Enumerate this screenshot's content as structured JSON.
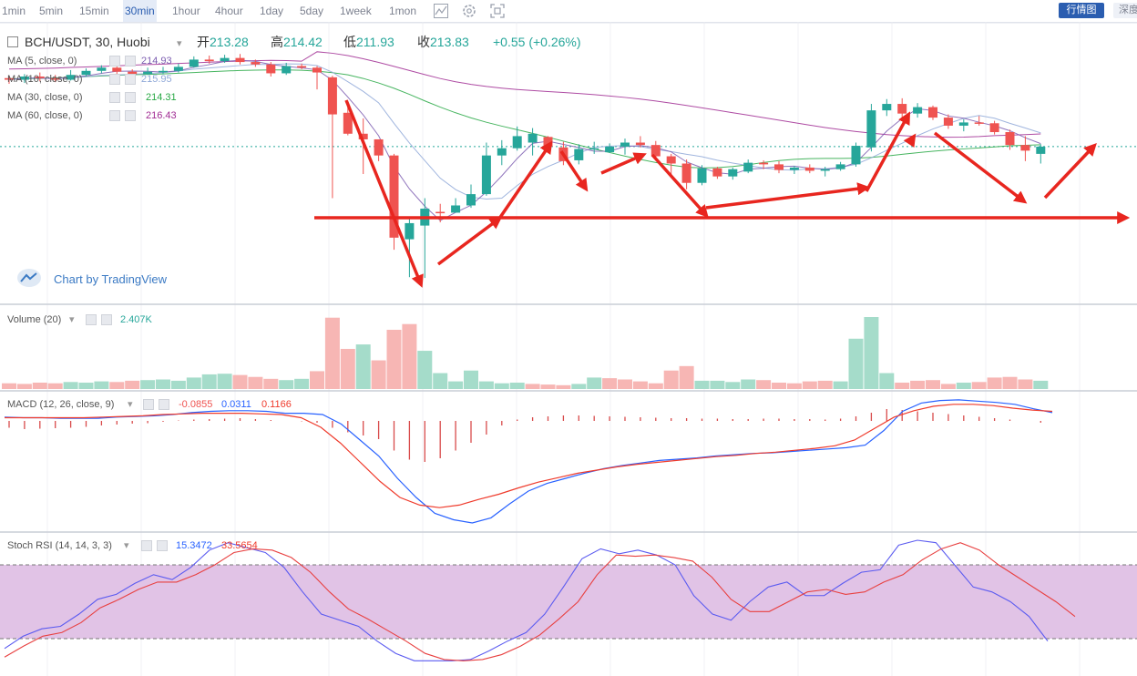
{
  "toolbar": {
    "timeframes": [
      "1min",
      "5min",
      "15min",
      "30min",
      "1hour",
      "4hour",
      "1day",
      "5day",
      "1week",
      "1mon"
    ],
    "active_timeframe": "30min",
    "quotes_button": "行情图",
    "depth_button": "深度"
  },
  "header": {
    "symbol": "BCH/USDT, 30, Huobi",
    "open_label": "开",
    "open": "213.28",
    "high_label": "高",
    "high": "214.42",
    "low_label": "低",
    "low": "211.93",
    "close_label": "收",
    "close": "213.83",
    "change": "+0.55 (+0.26%)"
  },
  "indicators": [
    {
      "label": "MA (5, close, 0)",
      "value": "214.93",
      "color": "#7b5cb0"
    },
    {
      "label": "MA (10, close, 0)",
      "value": "215.95",
      "color": "#8fa8d8"
    },
    {
      "label": "MA (30, close, 0)",
      "value": "214.31",
      "color": "#27a844"
    },
    {
      "label": "MA (60, close, 0)",
      "value": "216.43",
      "color": "#a02b93"
    }
  ],
  "attribution": "Chart by TradingView",
  "volume": {
    "label": "Volume (20)",
    "value": "2.407K"
  },
  "macd": {
    "label": "MACD (12, 26, close, 9)",
    "hist": "-0.0855",
    "macd": "0.0311",
    "signal": "0.1166"
  },
  "stoch_rsi": {
    "label": "Stoch RSI (14, 14, 3, 3)",
    "k": "15.3472",
    "d": "33.5654"
  },
  "colors": {
    "up": "#26a69a",
    "down": "#ef5350",
    "up_vol": "#a5dcca",
    "down_vol": "#f7b6b4",
    "annotation": "#e8261f",
    "stoch_band": "#e1c3e6",
    "macd_line": "#2962ff",
    "signal_line": "#ef3b2c"
  },
  "chart_data": {
    "type": "candlestick",
    "symbol": "BCH/USDT",
    "timeframe": "30",
    "candles": [
      [
        214.6,
        214.4,
        214.9,
        213.9
      ],
      [
        214.4,
        214.8,
        215.1,
        214.0
      ],
      [
        214.8,
        214.6,
        215.3,
        214.2
      ],
      [
        214.6,
        214.4,
        215.0,
        214.1
      ],
      [
        214.4,
        215.0,
        215.6,
        214.3
      ],
      [
        215.0,
        215.5,
        215.8,
        214.8
      ],
      [
        215.5,
        215.9,
        216.2,
        215.2
      ],
      [
        215.9,
        215.4,
        216.3,
        215.0
      ],
      [
        215.4,
        215.1,
        215.7,
        214.8
      ],
      [
        215.1,
        215.4,
        215.9,
        215.0
      ],
      [
        215.4,
        215.5,
        216.0,
        215.1
      ],
      [
        215.5,
        216.0,
        216.4,
        215.3
      ],
      [
        216.0,
        216.9,
        217.3,
        215.9
      ],
      [
        216.9,
        216.7,
        217.4,
        216.4
      ],
      [
        216.7,
        217.1,
        217.5,
        216.5
      ],
      [
        217.1,
        216.6,
        217.6,
        216.3
      ],
      [
        216.6,
        216.3,
        216.9,
        216.0
      ],
      [
        216.3,
        215.2,
        216.6,
        214.8
      ],
      [
        215.2,
        216.1,
        216.5,
        215.0
      ],
      [
        216.1,
        215.9,
        216.4,
        215.7
      ],
      [
        215.9,
        215.3,
        216.1,
        213.2
      ],
      [
        214.7,
        210.1,
        214.9,
        199.7
      ],
      [
        210.3,
        207.7,
        211.5,
        207.5
      ],
      [
        207.7,
        207.0,
        209.6,
        202.7
      ],
      [
        207.0,
        205.0,
        206.5,
        204.3
      ],
      [
        205.0,
        194.8,
        205.2,
        193.3
      ],
      [
        194.6,
        196.6,
        197.4,
        189.9
      ],
      [
        196.3,
        198.4,
        199.7,
        189.8
      ],
      [
        198.0,
        197.9,
        199.0,
        196.7
      ],
      [
        197.9,
        198.8,
        199.7,
        197.9
      ],
      [
        198.8,
        200.2,
        201.4,
        198.5
      ],
      [
        200.2,
        205.0,
        206.6,
        200.0
      ],
      [
        205.0,
        205.9,
        206.9,
        203.8
      ],
      [
        205.9,
        207.4,
        208.6,
        205.6
      ],
      [
        206.6,
        207.7,
        208.4,
        205.0
      ],
      [
        207.3,
        206.1,
        207.4,
        206.0
      ],
      [
        206.0,
        204.3,
        206.7,
        203.8
      ],
      [
        204.4,
        205.8,
        206.4,
        203.9
      ],
      [
        205.8,
        205.9,
        206.7,
        205.2
      ],
      [
        205.4,
        206.1,
        206.5,
        205.3
      ],
      [
        206.1,
        206.6,
        207.1,
        205.1
      ],
      [
        206.6,
        206.3,
        207.4,
        206.0
      ],
      [
        206.3,
        204.9,
        206.8,
        204.5
      ],
      [
        204.9,
        204.0,
        205.2,
        202.6
      ],
      [
        204.0,
        201.6,
        204.5,
        200.8
      ],
      [
        201.6,
        203.4,
        203.8,
        201.3
      ],
      [
        203.4,
        202.4,
        203.6,
        202.1
      ],
      [
        202.4,
        203.3,
        203.5,
        202.0
      ],
      [
        203.0,
        204.1,
        204.5,
        202.8
      ],
      [
        204.1,
        203.9,
        204.4,
        203.3
      ],
      [
        203.9,
        203.2,
        204.3,
        202.8
      ],
      [
        203.2,
        203.5,
        203.7,
        202.7
      ],
      [
        203.5,
        203.1,
        203.9,
        202.8
      ],
      [
        203.1,
        203.3,
        203.6,
        202.4
      ],
      [
        203.3,
        203.9,
        204.2,
        203.1
      ],
      [
        203.9,
        206.2,
        206.6,
        203.6
      ],
      [
        206.0,
        210.6,
        211.4,
        205.5
      ],
      [
        210.6,
        211.4,
        212.0,
        209.9
      ],
      [
        211.4,
        210.2,
        212.1,
        209.6
      ],
      [
        210.2,
        211.0,
        211.5,
        209.7
      ],
      [
        211.0,
        209.7,
        211.2,
        209.4
      ],
      [
        209.7,
        208.7,
        210.1,
        208.3
      ],
      [
        208.7,
        209.1,
        209.5,
        208.0
      ],
      [
        209.1,
        209.0,
        209.9,
        208.7
      ],
      [
        209.0,
        207.9,
        209.3,
        207.6
      ],
      [
        207.9,
        206.3,
        208.2,
        205.7
      ],
      [
        206.3,
        205.6,
        207.4,
        204.3
      ],
      [
        205.2,
        206.1,
        206.4,
        204.0
      ]
    ],
    "price_range": [
      188,
      220
    ],
    "volume": [
      [
        0.9,
        "d"
      ],
      [
        0.8,
        "d"
      ],
      [
        1.0,
        "d"
      ],
      [
        0.9,
        "d"
      ],
      [
        1.1,
        "u"
      ],
      [
        1.0,
        "u"
      ],
      [
        1.2,
        "u"
      ],
      [
        1.1,
        "d"
      ],
      [
        1.3,
        "d"
      ],
      [
        1.4,
        "u"
      ],
      [
        1.5,
        "u"
      ],
      [
        1.3,
        "u"
      ],
      [
        1.8,
        "u"
      ],
      [
        2.3,
        "u"
      ],
      [
        2.4,
        "u"
      ],
      [
        2.2,
        "d"
      ],
      [
        1.9,
        "d"
      ],
      [
        1.6,
        "d"
      ],
      [
        1.4,
        "u"
      ],
      [
        1.6,
        "u"
      ],
      [
        2.8,
        "d"
      ],
      [
        11.2,
        "d"
      ],
      [
        6.3,
        "d"
      ],
      [
        7.0,
        "u"
      ],
      [
        4.5,
        "d"
      ],
      [
        9.3,
        "d"
      ],
      [
        10.2,
        "d"
      ],
      [
        6.0,
        "u"
      ],
      [
        2.5,
        "u"
      ],
      [
        1.2,
        "u"
      ],
      [
        2.9,
        "u"
      ],
      [
        1.2,
        "u"
      ],
      [
        0.9,
        "u"
      ],
      [
        1.0,
        "u"
      ],
      [
        0.8,
        "d"
      ],
      [
        0.7,
        "d"
      ],
      [
        0.6,
        "d"
      ],
      [
        0.8,
        "u"
      ],
      [
        1.8,
        "u"
      ],
      [
        1.7,
        "d"
      ],
      [
        1.5,
        "d"
      ],
      [
        1.2,
        "d"
      ],
      [
        0.9,
        "d"
      ],
      [
        2.9,
        "d"
      ],
      [
        3.6,
        "d"
      ],
      [
        1.3,
        "u"
      ],
      [
        1.3,
        "u"
      ],
      [
        1.1,
        "u"
      ],
      [
        1.5,
        "u"
      ],
      [
        1.4,
        "d"
      ],
      [
        1.0,
        "d"
      ],
      [
        0.9,
        "d"
      ],
      [
        1.2,
        "d"
      ],
      [
        1.3,
        "d"
      ],
      [
        1.2,
        "u"
      ],
      [
        7.9,
        "u"
      ],
      [
        11.3,
        "u"
      ],
      [
        2.5,
        "u"
      ],
      [
        1.0,
        "d"
      ],
      [
        1.3,
        "d"
      ],
      [
        1.4,
        "d"
      ],
      [
        0.8,
        "d"
      ],
      [
        1.0,
        "u"
      ],
      [
        1.1,
        "d"
      ],
      [
        1.8,
        "d"
      ],
      [
        1.9,
        "d"
      ],
      [
        1.5,
        "d"
      ],
      [
        1.3,
        "u"
      ]
    ],
    "macd_hist_range": [
      -10,
      4
    ],
    "macd_hist": [
      -1.5,
      -1.8,
      -1.7,
      -1.6,
      -1.5,
      -1.3,
      -1.0,
      -0.8,
      -0.6,
      -0.5,
      -0.2,
      0.1,
      0.3,
      0.4,
      0.5,
      0.6,
      0.4,
      0.2,
      0.0,
      -0.1,
      -0.4,
      -1.5,
      -2.5,
      -3.2,
      -4.0,
      -6.5,
      -8.5,
      -9.0,
      -8.2,
      -6.5,
      -4.8,
      -3.0,
      -1.0,
      0.3,
      0.8,
      1.0,
      1.2,
      1.2,
      1.1,
      1.0,
      0.9,
      0.8,
      0.7,
      0.6,
      0.6,
      0.5,
      0.5,
      0.4,
      0.4,
      0.5,
      0.5,
      0.4,
      0.4,
      0.3,
      0.5,
      1.0,
      1.8,
      2.6,
      2.4,
      2.1,
      1.8,
      1.5,
      1.2,
      0.9,
      0.6,
      0.3,
      0.0,
      -0.4
    ],
    "macd_line": [
      0.6,
      0.5,
      0.5,
      0.4,
      0.4,
      0.4,
      0.6,
      0.7,
      0.8,
      1.0,
      1.3,
      1.5,
      1.6,
      1.6,
      1.5,
      1.2,
      1.2,
      1.0,
      -0.5,
      -3.0,
      -5.5,
      -9.0,
      -12.0,
      -14.5,
      -15.5,
      -16.0,
      -15.2,
      -13.0,
      -11.0,
      -9.8,
      -9.0,
      -8.2,
      -7.5,
      -7.0,
      -6.6,
      -6.2,
      -6.0,
      -5.8,
      -5.5,
      -5.3,
      -5.1,
      -5.0,
      -4.8,
      -4.6,
      -4.4,
      -4.2,
      -3.8,
      -1.5,
      1.5,
      2.8,
      3.2,
      3.3,
      3.1,
      2.9,
      2.6,
      1.9,
      1.3
    ],
    "signal_line": [
      0.5,
      0.5,
      0.5,
      0.5,
      0.5,
      0.6,
      0.7,
      0.8,
      1.0,
      1.1,
      1.2,
      1.2,
      1.2,
      1.1,
      1.0,
      0.5,
      -1.0,
      -3.5,
      -6.5,
      -9.5,
      -12.0,
      -13.2,
      -13.6,
      -13.2,
      -12.3,
      -11.5,
      -10.5,
      -9.6,
      -8.9,
      -8.2,
      -7.7,
      -7.2,
      -6.8,
      -6.5,
      -6.2,
      -5.9,
      -5.6,
      -5.4,
      -5.1,
      -4.9,
      -4.6,
      -4.3,
      -3.9,
      -3.0,
      -1.2,
      0.6,
      1.6,
      2.3,
      2.6,
      2.6,
      2.4,
      2.0,
      1.7,
      1.5
    ],
    "stoch_k": [
      12,
      22,
      28,
      30,
      40,
      52,
      56,
      65,
      72,
      68,
      78,
      92,
      98,
      94,
      90,
      78,
      58,
      40,
      35,
      30,
      18,
      8,
      2,
      2,
      2,
      3,
      10,
      18,
      25,
      40,
      62,
      85,
      93,
      89,
      92,
      88,
      80,
      55,
      40,
      35,
      50,
      62,
      66,
      55,
      55,
      65,
      74,
      76,
      96,
      100,
      98,
      80,
      62,
      58,
      50,
      38,
      18
    ],
    "stoch_d": [
      5,
      14,
      22,
      25,
      33,
      45,
      52,
      60,
      66,
      66,
      72,
      80,
      90,
      93,
      92,
      86,
      74,
      58,
      44,
      36,
      27,
      18,
      8,
      3,
      2,
      3,
      7,
      14,
      23,
      36,
      50,
      72,
      88,
      87,
      88,
      86,
      83,
      70,
      52,
      42,
      42,
      50,
      58,
      60,
      56,
      58,
      66,
      72,
      84,
      93,
      98,
      92,
      80,
      70,
      60,
      50,
      38
    ],
    "stoch_bands": [
      80,
      20
    ]
  }
}
